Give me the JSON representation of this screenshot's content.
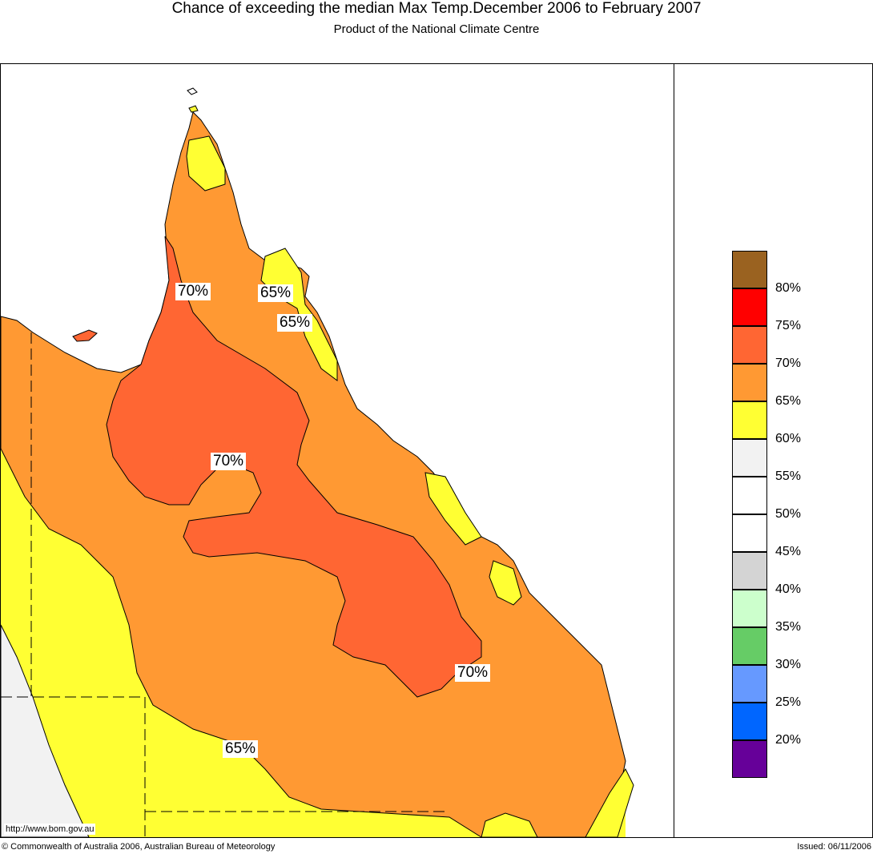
{
  "title": "Chance of exceeding the median Max Temp.December 2006 to February 2007",
  "subtitle": "Product of the National Climate Centre",
  "map_labels": [
    "70%",
    "65%",
    "65%",
    "70%",
    "70%",
    "65%"
  ],
  "url": "http://www.bom.gov.au",
  "footer": {
    "copyright": "© Commonwealth of Australia 2006, Australian Bureau of Meteorology",
    "issued": "Issued: 06/11/2006"
  },
  "legend": {
    "bands": [
      {
        "color": "#9a6220",
        "label": "80%"
      },
      {
        "color": "#ff0000",
        "label": "75%"
      },
      {
        "color": "#ff6633",
        "label": "70%"
      },
      {
        "color": "#ff9933",
        "label": "65%"
      },
      {
        "color": "#ffff33",
        "label": "60%"
      },
      {
        "color": "#f2f2f2",
        "label": "55%"
      },
      {
        "color": "#ffffff",
        "label": "50%"
      },
      {
        "color": "#ffffff",
        "label": "45%"
      },
      {
        "color": "#d4d4d4",
        "label": "40%"
      },
      {
        "color": "#ccffcc",
        "label": "35%"
      },
      {
        "color": "#66cc66",
        "label": "30%"
      },
      {
        "color": "#6699ff",
        "label": "25%"
      },
      {
        "color": "#0066ff",
        "label": "20%"
      },
      {
        "color": "#660099",
        "label": ""
      }
    ]
  }
}
